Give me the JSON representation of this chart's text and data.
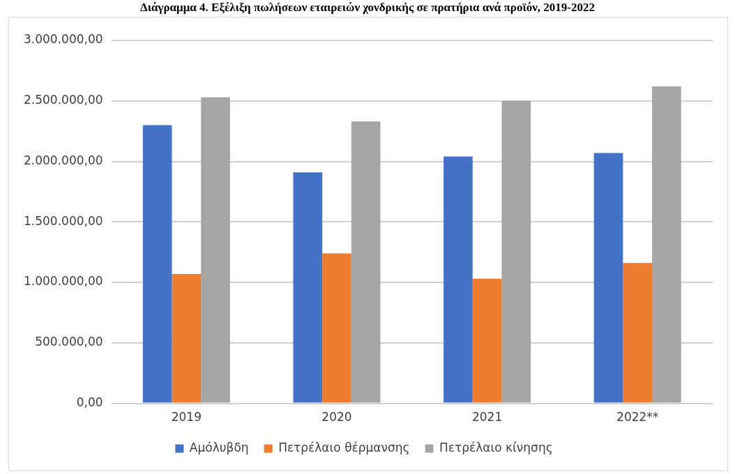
{
  "chart_data": {
    "type": "bar",
    "title": "Διάγραμμα 4. Εξέλιξη πωλήσεων εταιρειών χονδρικής σε πρατήρια ανά προϊόν, 2019-2022",
    "categories": [
      "2019",
      "2020",
      "2021",
      "2022**"
    ],
    "series": [
      {
        "name": "Αμόλυβδη",
        "color": "#4472c4",
        "values": [
          2300000,
          1910000,
          2040000,
          2070000
        ]
      },
      {
        "name": "Πετρέλαιο θέρμανσης",
        "color": "#ed7d31",
        "values": [
          1070000,
          1240000,
          1030000,
          1160000
        ]
      },
      {
        "name": "Πετρέλαιο κίνησης",
        "color": "#a5a5a5",
        "values": [
          2530000,
          2330000,
          2500000,
          2620000
        ]
      }
    ],
    "ylim": [
      0,
      3000000
    ],
    "yticks": [
      {
        "value": 0,
        "label": "0,00"
      },
      {
        "value": 500000,
        "label": "500.000,00"
      },
      {
        "value": 1000000,
        "label": "1.000.000,00"
      },
      {
        "value": 1500000,
        "label": "1.500.000,00"
      },
      {
        "value": 2000000,
        "label": "2.000.000,00"
      },
      {
        "value": 2500000,
        "label": "2.500.000,00"
      },
      {
        "value": 3000000,
        "label": "3.000.000,00"
      }
    ],
    "grid": "y",
    "legend": "bottom"
  }
}
